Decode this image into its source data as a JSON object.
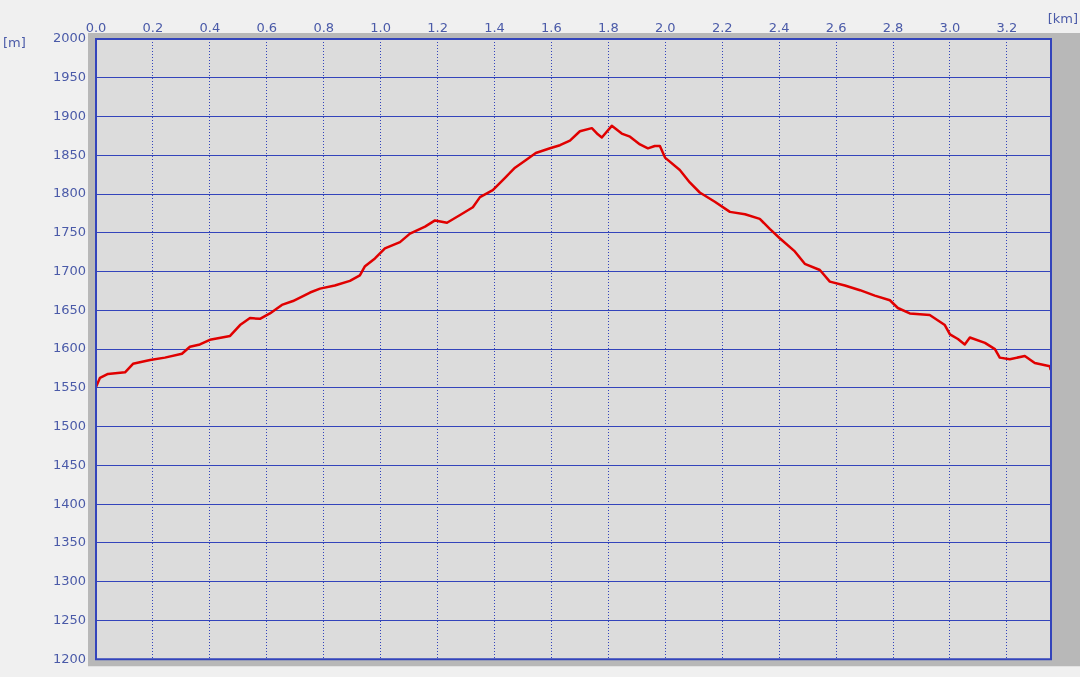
{
  "chart_data": {
    "type": "line",
    "xlabel": "[km]",
    "ylabel": "[m]",
    "xlim": [
      0,
      3.355
    ],
    "ylim": [
      1200,
      2000
    ],
    "xticks": [
      {
        "value": 0,
        "label": "0.0"
      },
      0.2,
      0.4,
      0.6,
      0.8,
      {
        "value": 1,
        "label": "1.0"
      },
      1.2,
      1.4,
      1.6,
      1.8,
      {
        "value": 2,
        "label": "2.0"
      },
      2.2,
      2.4,
      2.6,
      2.8,
      {
        "value": 3,
        "label": "3.0"
      },
      3.2
    ],
    "yticks": [
      1200,
      1250,
      1300,
      1350,
      1400,
      1450,
      1500,
      1550,
      1600,
      1650,
      1700,
      1750,
      1800,
      1850,
      1900,
      1950,
      2000
    ],
    "grid": true,
    "legend": false,
    "marker": "none",
    "line_style": "solid",
    "series": [
      {
        "color": "#e00000",
        "x": [
          0,
          0.014,
          0.042,
          0.102,
          0.13,
          0.19,
          0.242,
          0.302,
          0.33,
          0.365,
          0.4,
          0.471,
          0.506,
          0.541,
          0.576,
          0.611,
          0.653,
          0.692,
          0.752,
          0.787,
          0.839,
          0.892,
          0.927,
          0.945,
          0.98,
          1.015,
          1.068,
          1.103,
          1.156,
          1.191,
          1.233,
          1.279,
          1.324,
          1.349,
          1.394,
          1.437,
          1.472,
          1.507,
          1.545,
          1.595,
          1.63,
          1.665,
          1.7,
          1.742,
          1.763,
          1.777,
          1.812,
          1.847,
          1.876,
          1.911,
          1.939,
          1.963,
          1.981,
          1.999,
          2.051,
          2.086,
          2.121,
          2.174,
          2.227,
          2.28,
          2.332,
          2.367,
          2.402,
          2.455,
          2.49,
          2.543,
          2.578,
          2.631,
          2.684,
          2.736,
          2.789,
          2.817,
          2.859,
          2.929,
          2.982,
          3.0,
          3.028,
          3.052,
          3.07,
          3.123,
          3.158,
          3.175,
          3.21,
          3.263,
          3.298,
          3.351,
          3.354
        ],
        "values": [
          1551,
          1563,
          1568,
          1570,
          1581,
          1586,
          1589,
          1594,
          1603,
          1606,
          1612,
          1617,
          1631,
          1640,
          1639,
          1646,
          1657,
          1662,
          1673,
          1678,
          1682,
          1688,
          1695,
          1707,
          1717,
          1730,
          1738,
          1749,
          1758,
          1766,
          1763,
          1773,
          1783,
          1796,
          1805,
          1821,
          1834,
          1843,
          1853,
          1859,
          1863,
          1869,
          1881,
          1885,
          1877,
          1873,
          1888,
          1878,
          1874,
          1864,
          1859,
          1862,
          1862,
          1847,
          1831,
          1815,
          1802,
          1790,
          1777,
          1774,
          1768,
          1755,
          1743,
          1726,
          1710,
          1702,
          1687,
          1682,
          1676,
          1669,
          1663,
          1653,
          1646,
          1644,
          1631,
          1619,
          1613,
          1606,
          1615,
          1608,
          1600,
          1589,
          1587,
          1591,
          1582,
          1578,
          1573
        ]
      }
    ]
  }
}
